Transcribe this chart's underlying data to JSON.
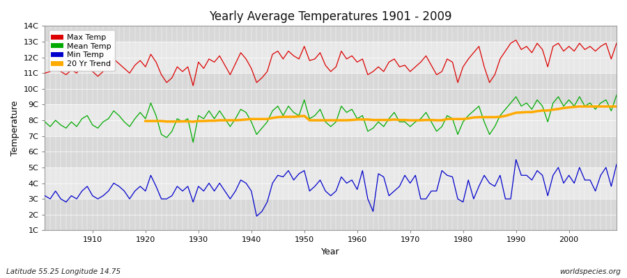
{
  "title": "Yearly Average Temperatures 1901 - 2009",
  "xlabel": "Year",
  "ylabel": "Temperature",
  "bottom_left_label": "Latitude 55.25 Longitude 14.75",
  "bottom_right_label": "worldspecies.org",
  "yticks": [
    "1C",
    "2C",
    "3C",
    "4C",
    "5C",
    "6C",
    "7C",
    "8C",
    "9C",
    "10C",
    "11C",
    "12C",
    "13C",
    "14C"
  ],
  "yvalues": [
    1,
    2,
    3,
    4,
    5,
    6,
    7,
    8,
    9,
    10,
    11,
    12,
    13,
    14
  ],
  "ylim": [
    1,
    14
  ],
  "xlim": [
    1901,
    2009
  ],
  "fig_bg_color": "#ffffff",
  "plot_bg_color": "#e0e0e0",
  "band_color_1": "#d8d8d8",
  "band_color_2": "#e8e8e8",
  "grid_color": "#ffffff",
  "max_temp_color": "#dd0000",
  "mean_temp_color": "#00aa00",
  "min_temp_color": "#0000cc",
  "trend_color": "#ffaa00",
  "legend_labels": [
    "Max Temp",
    "Mean Temp",
    "Min Temp",
    "20 Yr Trend"
  ],
  "years": [
    1901,
    1902,
    1903,
    1904,
    1905,
    1906,
    1907,
    1908,
    1909,
    1910,
    1911,
    1912,
    1913,
    1914,
    1915,
    1916,
    1917,
    1918,
    1919,
    1920,
    1921,
    1922,
    1923,
    1924,
    1925,
    1926,
    1927,
    1928,
    1929,
    1930,
    1931,
    1932,
    1933,
    1934,
    1935,
    1936,
    1937,
    1938,
    1939,
    1940,
    1941,
    1942,
    1943,
    1944,
    1945,
    1946,
    1947,
    1948,
    1949,
    1950,
    1951,
    1952,
    1953,
    1954,
    1955,
    1956,
    1957,
    1958,
    1959,
    1960,
    1961,
    1962,
    1963,
    1964,
    1965,
    1966,
    1967,
    1968,
    1969,
    1970,
    1971,
    1972,
    1973,
    1974,
    1975,
    1976,
    1977,
    1978,
    1979,
    1980,
    1981,
    1982,
    1983,
    1984,
    1985,
    1986,
    1987,
    1988,
    1989,
    1990,
    1991,
    1992,
    1993,
    1994,
    1995,
    1996,
    1997,
    1998,
    1999,
    2000,
    2001,
    2002,
    2003,
    2004,
    2005,
    2006,
    2007,
    2008,
    2009
  ],
  "max_temp": [
    11.0,
    11.1,
    11.3,
    11.1,
    10.9,
    11.2,
    11.0,
    11.5,
    11.4,
    11.1,
    10.8,
    11.1,
    11.4,
    11.9,
    11.6,
    11.3,
    11.0,
    11.5,
    11.8,
    11.4,
    12.2,
    11.7,
    10.9,
    10.4,
    10.7,
    11.4,
    11.1,
    11.4,
    10.2,
    11.7,
    11.3,
    11.9,
    11.7,
    12.1,
    11.5,
    10.9,
    11.6,
    12.3,
    11.9,
    11.3,
    10.4,
    10.7,
    11.1,
    12.2,
    12.4,
    11.9,
    12.4,
    12.1,
    11.9,
    12.7,
    11.8,
    11.9,
    12.3,
    11.5,
    11.1,
    11.4,
    12.4,
    11.9,
    12.1,
    11.7,
    11.9,
    10.9,
    11.1,
    11.4,
    11.1,
    11.7,
    11.9,
    11.4,
    11.5,
    11.1,
    11.4,
    11.7,
    12.1,
    11.5,
    10.9,
    11.1,
    11.9,
    11.7,
    10.4,
    11.4,
    11.9,
    12.3,
    12.7,
    11.4,
    10.4,
    10.9,
    11.9,
    12.4,
    12.9,
    13.1,
    12.5,
    12.7,
    12.3,
    12.9,
    12.5,
    11.4,
    12.7,
    12.9,
    12.4,
    12.7,
    12.4,
    12.9,
    12.5,
    12.7,
    12.4,
    12.7,
    12.9,
    11.9,
    12.9
  ],
  "mean_temp": [
    7.9,
    7.6,
    8.0,
    7.7,
    7.5,
    7.9,
    7.6,
    8.1,
    8.3,
    7.7,
    7.5,
    7.9,
    8.1,
    8.6,
    8.3,
    7.9,
    7.6,
    8.1,
    8.5,
    8.1,
    9.1,
    8.3,
    7.1,
    6.9,
    7.3,
    8.1,
    7.9,
    8.1,
    6.6,
    8.3,
    8.1,
    8.6,
    8.1,
    8.6,
    8.1,
    7.6,
    8.1,
    8.7,
    8.5,
    7.9,
    7.1,
    7.5,
    7.9,
    8.6,
    8.9,
    8.3,
    8.9,
    8.5,
    8.3,
    9.3,
    8.1,
    8.3,
    8.7,
    7.9,
    7.6,
    7.9,
    8.9,
    8.5,
    8.7,
    8.1,
    8.3,
    7.3,
    7.5,
    7.9,
    7.6,
    8.1,
    8.5,
    7.9,
    7.9,
    7.6,
    7.9,
    8.1,
    8.5,
    7.9,
    7.3,
    7.6,
    8.3,
    8.1,
    7.1,
    7.9,
    8.3,
    8.6,
    8.9,
    7.9,
    7.1,
    7.6,
    8.3,
    8.7,
    9.1,
    9.5,
    8.9,
    9.1,
    8.7,
    9.3,
    8.9,
    7.9,
    9.1,
    9.5,
    8.9,
    9.3,
    8.9,
    9.5,
    8.9,
    9.1,
    8.7,
    9.1,
    9.3,
    8.6,
    9.6
  ],
  "min_temp": [
    3.2,
    3.0,
    3.5,
    3.0,
    2.8,
    3.2,
    3.0,
    3.5,
    3.8,
    3.2,
    3.0,
    3.2,
    3.5,
    4.0,
    3.8,
    3.5,
    3.0,
    3.5,
    3.8,
    3.5,
    4.5,
    3.8,
    3.0,
    3.0,
    3.2,
    3.8,
    3.5,
    3.8,
    2.8,
    3.8,
    3.5,
    4.0,
    3.5,
    4.0,
    3.5,
    3.0,
    3.5,
    4.2,
    4.0,
    3.5,
    1.9,
    2.2,
    2.8,
    4.0,
    4.5,
    4.4,
    4.8,
    4.2,
    4.6,
    4.8,
    3.5,
    3.8,
    4.2,
    3.5,
    3.2,
    3.5,
    4.4,
    4.0,
    4.2,
    3.6,
    4.8,
    3.0,
    2.2,
    4.6,
    4.4,
    3.2,
    3.5,
    3.8,
    4.5,
    4.0,
    4.5,
    3.0,
    3.0,
    3.5,
    3.5,
    4.8,
    4.5,
    4.4,
    3.0,
    2.8,
    4.2,
    3.0,
    3.8,
    4.5,
    4.0,
    3.8,
    4.5,
    3.0,
    3.0,
    5.5,
    4.5,
    4.5,
    4.2,
    4.8,
    4.5,
    3.2,
    4.5,
    5.0,
    4.0,
    4.5,
    4.0,
    5.0,
    4.2,
    4.2,
    3.5,
    4.5,
    5.0,
    3.8,
    5.2
  ],
  "trend_20yr": [
    null,
    null,
    null,
    null,
    null,
    null,
    null,
    null,
    null,
    null,
    null,
    null,
    null,
    null,
    null,
    null,
    null,
    null,
    null,
    7.95,
    7.95,
    7.95,
    7.95,
    7.92,
    7.92,
    7.92,
    7.93,
    7.93,
    7.91,
    7.95,
    7.95,
    7.97,
    7.97,
    8.0,
    8.0,
    8.0,
    8.0,
    8.02,
    8.05,
    8.08,
    8.08,
    8.08,
    8.08,
    8.15,
    8.2,
    8.22,
    8.22,
    8.22,
    8.25,
    8.28,
    8.0,
    8.0,
    8.0,
    8.0,
    8.0,
    8.0,
    8.0,
    8.0,
    8.02,
    8.05,
    8.05,
    8.05,
    8.02,
    8.02,
    8.02,
    8.02,
    8.05,
    8.02,
    8.02,
    8.0,
    8.0,
    8.0,
    8.02,
    8.02,
    8.0,
    8.0,
    8.08,
    8.08,
    8.08,
    8.08,
    8.12,
    8.18,
    8.2,
    8.2,
    8.2,
    8.2,
    8.22,
    8.28,
    8.38,
    8.48,
    8.5,
    8.52,
    8.52,
    8.58,
    8.62,
    8.62,
    8.68,
    8.72,
    8.78,
    8.82,
    8.85,
    8.88,
    8.88,
    8.88,
    8.88,
    8.88,
    8.88,
    8.88,
    8.88
  ]
}
